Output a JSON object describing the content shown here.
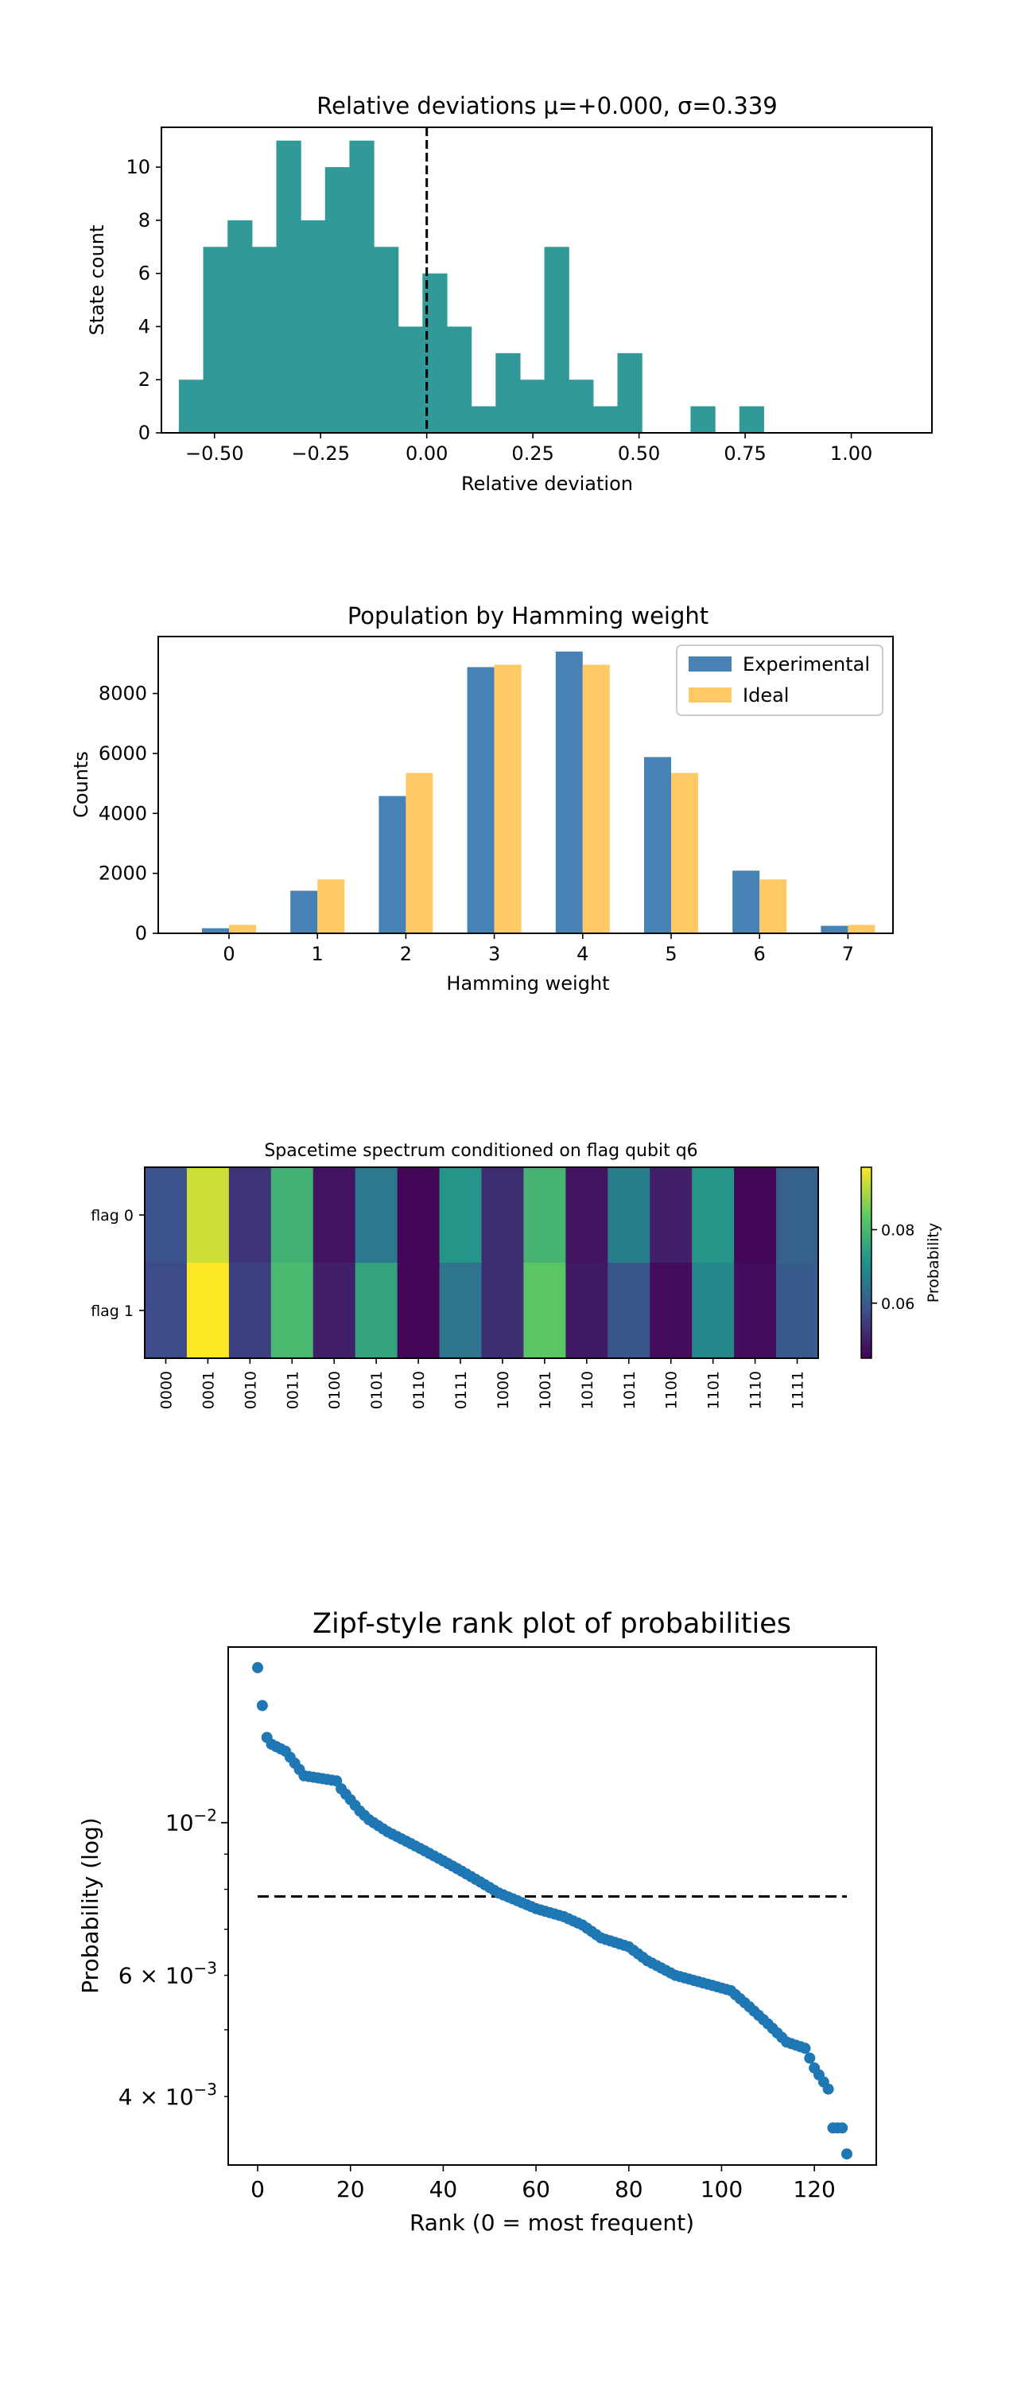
{
  "chart_data": [
    {
      "type": "histogram",
      "title": "Relative deviations μ=+0.000, σ=0.339",
      "xlabel": "Relative deviation",
      "ylabel": "State count",
      "xlim": [
        -0.625,
        1.19
      ],
      "ylim": [
        0,
        11.5
      ],
      "xticks": [
        -0.5,
        -0.25,
        0.0,
        0.25,
        0.5,
        0.75,
        1.0
      ],
      "xtick_labels": [
        "−0.50",
        "−0.25",
        "0.00",
        "0.25",
        "0.50",
        "0.75",
        "1.00"
      ],
      "yticks": [
        0,
        2,
        4,
        6,
        8,
        10
      ],
      "ytick_labels": [
        "0",
        "2",
        "4",
        "6",
        "8",
        "10"
      ],
      "bin_start": -0.584,
      "bin_width": 0.0574,
      "counts": [
        2,
        7,
        8,
        7,
        11,
        8,
        10,
        11,
        7,
        4,
        6,
        4,
        1,
        3,
        2,
        7,
        2,
        1,
        3,
        0,
        0,
        1,
        0,
        1
      ],
      "vline": 0.0,
      "color": "#319a99"
    },
    {
      "type": "bar",
      "title": "Population by Hamming weight",
      "xlabel": "Hamming weight",
      "ylabel": "Counts",
      "ylim": [
        0,
        9900
      ],
      "categories": [
        "0",
        "1",
        "2",
        "3",
        "4",
        "5",
        "6",
        "7"
      ],
      "yticks": [
        0,
        2000,
        4000,
        6000,
        8000
      ],
      "ytick_labels": [
        "0",
        "2000",
        "4000",
        "6000",
        "8000"
      ],
      "series": [
        {
          "name": "Experimental",
          "color": "#4682b4",
          "values": [
            170,
            1420,
            4580,
            8880,
            9400,
            5880,
            2090,
            250
          ]
        },
        {
          "name": "Ideal",
          "color": "#ffca66",
          "values": [
            280,
            1800,
            5350,
            8960,
            8960,
            5350,
            1800,
            280
          ]
        }
      ],
      "legend": "top-right"
    },
    {
      "type": "heatmap",
      "title": "Spacetime spectrum conditioned on flag qubit q6",
      "rows": [
        "flag 0",
        "flag 1"
      ],
      "columns": [
        "0000",
        "0001",
        "0010",
        "0011",
        "0100",
        "0101",
        "0110",
        "0111",
        "1000",
        "1001",
        "1010",
        "1011",
        "1100",
        "1101",
        "1110",
        "1111"
      ],
      "values": [
        [
          0.058,
          0.093,
          0.053,
          0.078,
          0.048,
          0.066,
          0.046,
          0.072,
          0.052,
          0.079,
          0.048,
          0.067,
          0.05,
          0.072,
          0.046,
          0.061
        ],
        [
          0.057,
          0.097,
          0.055,
          0.08,
          0.05,
          0.075,
          0.046,
          0.065,
          0.052,
          0.083,
          0.049,
          0.059,
          0.047,
          0.069,
          0.047,
          0.06
        ]
      ],
      "colorbar_label": "Probability",
      "vmin": 0.045,
      "vmax": 0.097,
      "colorbar_ticks": [
        0.06,
        0.08
      ],
      "colorbar_tick_labels": [
        "0.06",
        "0.08"
      ],
      "colormap": "viridis"
    },
    {
      "type": "scatter",
      "title": "Zipf-style rank plot of probabilities",
      "xlabel": "Rank (0 = most frequent)",
      "ylabel": "Probability (log)",
      "xlim": [
        -6.35,
        133.35
      ],
      "ylim": [
        0.00318,
        0.018
      ],
      "yscale": "log",
      "xticks": [
        0,
        20,
        40,
        60,
        80,
        100,
        120
      ],
      "xtick_labels": [
        "0",
        "20",
        "40",
        "60",
        "80",
        "100",
        "120"
      ],
      "yticks_major": [
        0.01
      ],
      "ytick_major_labels": [
        "10",
        "−2"
      ],
      "yticks_minor": [
        0.004,
        0.006
      ],
      "ytick_minor_labels": [
        [
          "4",
          "10",
          "−3"
        ],
        [
          "6",
          "10",
          "−3"
        ]
      ],
      "yticks_minor_unlabeled": [
        0.005,
        0.007,
        0.008,
        0.009
      ],
      "hline": 0.0078125,
      "hline_xrange": [
        0,
        127
      ],
      "anchors": [
        [
          0,
          0.0168
        ],
        [
          1,
          0.0148
        ],
        [
          2,
          0.0133
        ],
        [
          3,
          0.013
        ],
        [
          6,
          0.0127
        ],
        [
          8,
          0.0122
        ],
        [
          10,
          0.0117
        ],
        [
          17,
          0.0115
        ],
        [
          18,
          0.0112
        ],
        [
          20,
          0.0108
        ],
        [
          22,
          0.0104
        ],
        [
          24,
          0.0101
        ],
        [
          28,
          0.0097
        ],
        [
          32,
          0.0094
        ],
        [
          36,
          0.0091
        ],
        [
          40,
          0.0088
        ],
        [
          44,
          0.0085
        ],
        [
          48,
          0.0082
        ],
        [
          52,
          0.0079
        ],
        [
          56,
          0.0077
        ],
        [
          60,
          0.0075
        ],
        [
          66,
          0.0073
        ],
        [
          70,
          0.0071
        ],
        [
          74,
          0.0068
        ],
        [
          80,
          0.0066
        ],
        [
          84,
          0.0063
        ],
        [
          90,
          0.006
        ],
        [
          98,
          0.0058
        ],
        [
          102,
          0.0057
        ],
        [
          106,
          0.0054
        ],
        [
          110,
          0.0051
        ],
        [
          114,
          0.0048
        ],
        [
          118,
          0.0047
        ],
        [
          120,
          0.0044
        ],
        [
          121,
          0.0043
        ],
        [
          122,
          0.0042
        ],
        [
          123,
          0.0041
        ],
        [
          124,
          0.0036
        ],
        [
          126,
          0.0036
        ],
        [
          127,
          0.0033
        ]
      ],
      "color": "#1f77b4"
    }
  ]
}
